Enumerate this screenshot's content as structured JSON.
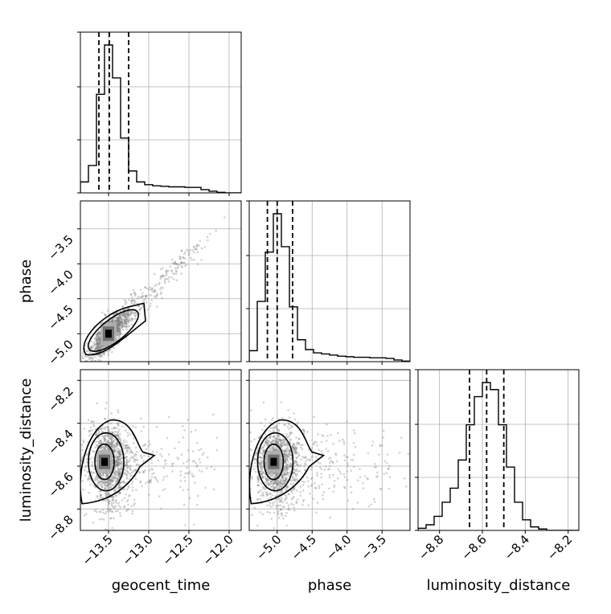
{
  "chart_data": {
    "type": "corner",
    "parameters": [
      "geocent_time",
      "phase",
      "luminosity_distance"
    ],
    "axis_labels": {
      "x": [
        "geocent_time",
        "phase",
        "luminosity_distance"
      ],
      "y": [
        "phase",
        "luminosity_distance"
      ]
    },
    "ranges": {
      "geocent_time": [
        -13.85,
        -11.85
      ],
      "phase": [
        -5.4,
        -3.1
      ],
      "luminosity_distance": [
        -8.9,
        -8.15
      ]
    },
    "ticks": {
      "geocent_time": [
        -13.5,
        -13.0,
        -12.5,
        -12.0
      ],
      "phase": [
        -5.0,
        -4.5,
        -4.0,
        -3.5
      ],
      "luminosity_distance": [
        -8.8,
        -8.6,
        -8.4,
        -8.2
      ]
    },
    "tick_labels": {
      "geocent_time": [
        "−13.5",
        "−13.0",
        "−12.5",
        "−12.0"
      ],
      "phase": [
        "−5.0",
        "−4.5",
        "−4.0",
        "−3.5"
      ],
      "luminosity_distance": [
        "−8.8",
        "−8.6",
        "−8.4",
        "−8.2"
      ]
    },
    "quantiles": {
      "geocent_time": [
        -13.62,
        -13.49,
        -13.25
      ],
      "phase": [
        -5.14,
        -5.0,
        -4.78
      ],
      "luminosity_distance": [
        -8.66,
        -8.58,
        -8.5
      ]
    },
    "histograms": {
      "geocent_time": {
        "bin_edges": [
          -13.85,
          -13.75,
          -13.65,
          -13.55,
          -13.45,
          -13.35,
          -13.25,
          -13.15,
          -13.05,
          -12.95,
          -12.85,
          -12.75,
          -12.65,
          -12.55,
          -12.45,
          -12.35,
          -12.25,
          -12.15,
          -12.05,
          -11.95,
          -11.85
        ],
        "counts": [
          2,
          5,
          18,
          27,
          21,
          10,
          4,
          2,
          1.5,
          1.3,
          1.2,
          1.1,
          1.1,
          1.0,
          1.0,
          0.6,
          0.3,
          0.1,
          0,
          0
        ]
      },
      "phase": {
        "bin_edges": [
          -5.4,
          -5.285,
          -5.17,
          -5.055,
          -4.94,
          -4.825,
          -4.71,
          -4.595,
          -4.48,
          -4.365,
          -4.25,
          -4.135,
          -4.02,
          -3.905,
          -3.79,
          -3.675,
          -3.56,
          -3.445,
          -3.33,
          -3.215,
          -3.1
        ],
        "counts": [
          2,
          11,
          20,
          27,
          21,
          10,
          4,
          2.2,
          1.6,
          1.4,
          1.2,
          1.0,
          0.9,
          0.8,
          0.8,
          0.7,
          0.7,
          0.6,
          0.3,
          0.1
        ]
      },
      "luminosity_distance": {
        "bin_edges": [
          -8.9,
          -8.8625,
          -8.825,
          -8.7875,
          -8.75,
          -8.7125,
          -8.675,
          -8.6375,
          -8.6,
          -8.5625,
          -8.525,
          -8.4875,
          -8.45,
          -8.4125,
          -8.375,
          -8.3375,
          -8.3,
          -8.2625,
          -8.225,
          -8.1875,
          -8.15
        ],
        "counts": [
          0.3,
          0.8,
          2,
          4,
          6,
          10,
          15,
          19,
          21,
          20,
          15,
          9,
          4,
          1.5,
          0.5,
          0.2,
          0,
          0,
          0,
          0
        ]
      }
    },
    "pairs": [
      {
        "x": "geocent_time",
        "y": "phase",
        "correlation": 0.9,
        "peak": [
          -13.5,
          -5.0
        ]
      },
      {
        "x": "geocent_time",
        "y": "luminosity_distance",
        "correlation": 0.0,
        "peak": [
          -13.55,
          -8.58
        ]
      },
      {
        "x": "phase",
        "y": "luminosity_distance",
        "correlation": 0.0,
        "peak": [
          -5.05,
          -8.58
        ]
      }
    ],
    "grid": true
  }
}
